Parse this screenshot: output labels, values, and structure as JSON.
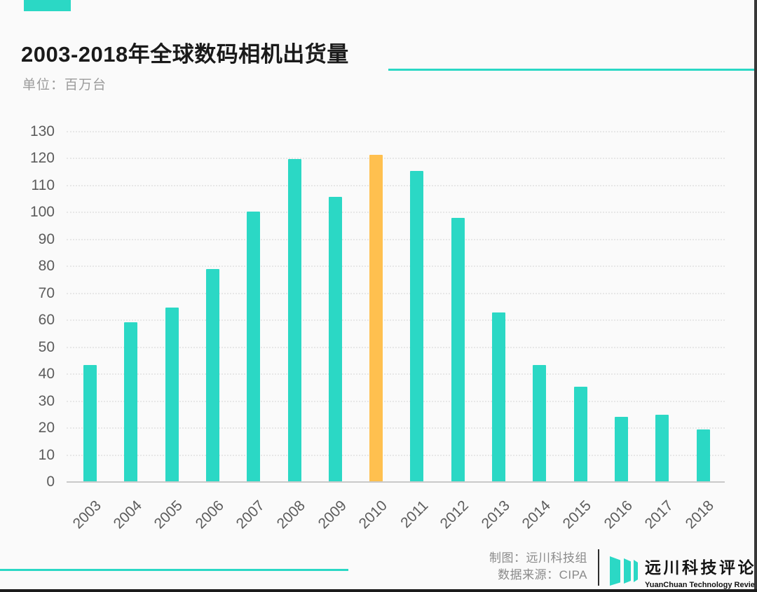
{
  "header": {
    "title": "2003-2018年全球数码相机出货量",
    "unit_label": "单位：百万台"
  },
  "colors": {
    "teal": "#2bd8c5",
    "orange": "#ffc04f",
    "gridline": "#e7e7e7",
    "axis_text": "#5c5c5c"
  },
  "chart_data": {
    "type": "bar",
    "title": "2003-2018年全球数码相机出货量",
    "ylabel": "单位：百万台",
    "xlabel": "",
    "categories": [
      "2003",
      "2004",
      "2005",
      "2006",
      "2007",
      "2008",
      "2009",
      "2010",
      "2011",
      "2012",
      "2013",
      "2014",
      "2015",
      "2016",
      "2017",
      "2018"
    ],
    "values": [
      43.4,
      59.4,
      64.8,
      79.0,
      100.4,
      119.8,
      105.9,
      121.5,
      115.5,
      98.1,
      62.8,
      43.4,
      35.4,
      24.2,
      25.0,
      19.4
    ],
    "yticks": [
      0,
      10,
      20,
      30,
      40,
      50,
      60,
      70,
      80,
      90,
      100,
      110,
      120,
      130
    ],
    "ylim": [
      0,
      130
    ],
    "grid": "horizontal-dotted",
    "legend": "none",
    "bar_color": "#2bd8c5",
    "highlight_category": "2010",
    "highlight_index": 7,
    "highlight_color": "#ffc04f"
  },
  "footer": {
    "credit_line1": "制图：远川科技组",
    "credit_line2": "数据来源：CIPA",
    "logo_title": "远川科技评论",
    "logo_subtitle": "YuanChuan Technology Review"
  }
}
